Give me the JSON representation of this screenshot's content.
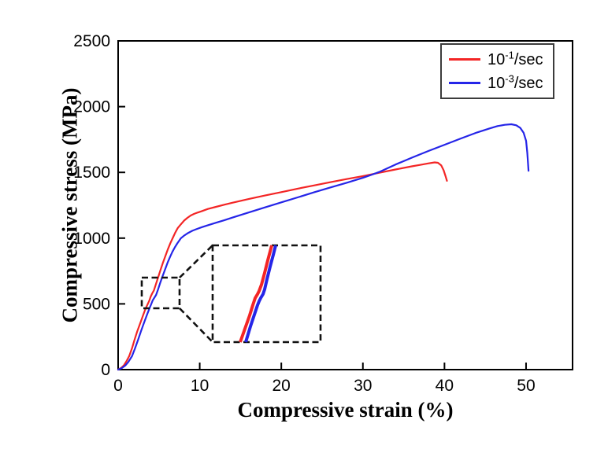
{
  "chart_data": {
    "type": "line",
    "title": "",
    "xlabel": "Compressive strain (%)",
    "ylabel": "Compressive stress (MPa)",
    "xlim": [
      0,
      55.7
    ],
    "ylim": [
      0,
      2500
    ],
    "x_ticks": [
      0,
      10,
      20,
      30,
      40,
      50
    ],
    "y_ticks": [
      0,
      500,
      1000,
      1500,
      2000,
      2500
    ],
    "grid": false,
    "legend_position": "top-right",
    "axis_color": "#000000",
    "tick_font_px": 21,
    "series": [
      {
        "name": "10^-1/sec",
        "color": "#f32525",
        "width": 2.2,
        "points": [
          [
            0,
            0
          ],
          [
            0.35,
            12
          ],
          [
            0.7,
            32
          ],
          [
            1.0,
            62
          ],
          [
            1.35,
            102
          ],
          [
            1.7,
            162
          ],
          [
            2.0,
            225
          ],
          [
            2.35,
            292
          ],
          [
            2.7,
            352
          ],
          [
            3.05,
            412
          ],
          [
            3.35,
            462
          ],
          [
            3.6,
            495
          ],
          [
            3.8,
            522
          ],
          [
            4.0,
            556
          ],
          [
            4.18,
            580
          ],
          [
            4.38,
            602
          ],
          [
            4.6,
            645
          ],
          [
            4.9,
            702
          ],
          [
            5.2,
            760
          ],
          [
            5.5,
            815
          ],
          [
            5.8,
            866
          ],
          [
            6.1,
            916
          ],
          [
            6.4,
            962
          ],
          [
            6.7,
            1002
          ],
          [
            7.0,
            1042
          ],
          [
            7.3,
            1076
          ],
          [
            7.7,
            1106
          ],
          [
            8.1,
            1134
          ],
          [
            8.5,
            1155
          ],
          [
            8.9,
            1172
          ],
          [
            9.3,
            1184
          ],
          [
            9.7,
            1194
          ],
          [
            10.2,
            1204
          ],
          [
            11,
            1222
          ],
          [
            12,
            1238
          ],
          [
            13,
            1254
          ],
          [
            14,
            1269
          ],
          [
            16,
            1297
          ],
          [
            18,
            1324
          ],
          [
            20,
            1350
          ],
          [
            22,
            1376
          ],
          [
            24,
            1401
          ],
          [
            26,
            1425
          ],
          [
            28,
            1449
          ],
          [
            30,
            1472
          ],
          [
            32,
            1497
          ],
          [
            34,
            1522
          ],
          [
            36,
            1546
          ],
          [
            37,
            1557
          ],
          [
            38,
            1568
          ],
          [
            38.8,
            1576
          ],
          [
            39.2,
            1573
          ],
          [
            39.6,
            1554
          ],
          [
            39.9,
            1516
          ],
          [
            40.15,
            1468
          ],
          [
            40.3,
            1436
          ]
        ]
      },
      {
        "name": "10^-3/sec",
        "color": "#2525e8",
        "width": 2.2,
        "points": [
          [
            0,
            0
          ],
          [
            0.45,
            12
          ],
          [
            0.9,
            32
          ],
          [
            1.25,
            58
          ],
          [
            1.7,
            102
          ],
          [
            2.05,
            158
          ],
          [
            2.45,
            228
          ],
          [
            2.8,
            292
          ],
          [
            3.15,
            352
          ],
          [
            3.5,
            412
          ],
          [
            3.85,
            468
          ],
          [
            4.05,
            498
          ],
          [
            4.25,
            528
          ],
          [
            4.45,
            548
          ],
          [
            4.65,
            568
          ],
          [
            4.9,
            612
          ],
          [
            5.15,
            658
          ],
          [
            5.45,
            712
          ],
          [
            5.75,
            762
          ],
          [
            6.05,
            812
          ],
          [
            6.35,
            856
          ],
          [
            6.65,
            896
          ],
          [
            6.95,
            930
          ],
          [
            7.25,
            960
          ],
          [
            7.7,
            1000
          ],
          [
            8.1,
            1020
          ],
          [
            8.6,
            1040
          ],
          [
            9.1,
            1056
          ],
          [
            9.6,
            1068
          ],
          [
            10.2,
            1082
          ],
          [
            11,
            1098
          ],
          [
            12,
            1117
          ],
          [
            13,
            1136
          ],
          [
            14,
            1156
          ],
          [
            16,
            1195
          ],
          [
            18,
            1234
          ],
          [
            20,
            1272
          ],
          [
            22,
            1310
          ],
          [
            24,
            1348
          ],
          [
            26,
            1385
          ],
          [
            28,
            1421
          ],
          [
            30,
            1459
          ],
          [
            31,
            1480
          ],
          [
            32,
            1503
          ],
          [
            34,
            1560
          ],
          [
            36,
            1612
          ],
          [
            38,
            1662
          ],
          [
            40,
            1710
          ],
          [
            42,
            1758
          ],
          [
            44,
            1804
          ],
          [
            45.5,
            1834
          ],
          [
            46.5,
            1852
          ],
          [
            47.4,
            1862
          ],
          [
            48.2,
            1866
          ],
          [
            48.8,
            1858
          ],
          [
            49.3,
            1838
          ],
          [
            49.7,
            1802
          ],
          [
            50.0,
            1740
          ],
          [
            50.15,
            1650
          ],
          [
            50.3,
            1512
          ]
        ]
      }
    ],
    "inset": {
      "note": "magnified view of serration region; coords are px relative to plot area",
      "dash_color": "#111111",
      "dash_pattern": "8 4.5",
      "dash_width": 2.6,
      "small_box": {
        "x": 30,
        "y": 301,
        "w": 48,
        "h": 39
      },
      "big_box": {
        "x": 120,
        "y": 260,
        "w": 137,
        "h": 123
      },
      "connectors": [
        [
          78,
          301,
          120,
          260
        ],
        [
          78,
          340,
          120,
          383
        ]
      ],
      "curves": [
        {
          "color": "#f32525",
          "width": 4,
          "points": [
            [
              155,
              383
            ],
            [
              161,
              366
            ],
            [
              167,
              349
            ],
            [
              171,
              336
            ],
            [
              174,
              327
            ],
            [
              177,
              322
            ],
            [
              179,
              318
            ],
            [
              182,
              310
            ],
            [
              186,
              295
            ],
            [
              190,
              279
            ],
            [
              194,
              264
            ],
            [
              195,
              260
            ]
          ]
        },
        {
          "color": "#2525e8",
          "width": 4,
          "points": [
            [
              162,
              383
            ],
            [
              168,
              363
            ],
            [
              173,
              348
            ],
            [
              177,
              336
            ],
            [
              179,
              331
            ],
            [
              181,
              327
            ],
            [
              184,
              322
            ],
            [
              186,
              316
            ],
            [
              189,
              303
            ],
            [
              193,
              287
            ],
            [
              197,
              272
            ],
            [
              200,
              260
            ]
          ]
        }
      ]
    }
  },
  "legend": {
    "border_color": "#3c3c3c",
    "items": [
      {
        "base": "10",
        "sup": "-1",
        "suffix": "/sec",
        "color": "#f32525"
      },
      {
        "base": "10",
        "sup": "-3",
        "suffix": "/sec",
        "color": "#2525e8"
      }
    ]
  }
}
